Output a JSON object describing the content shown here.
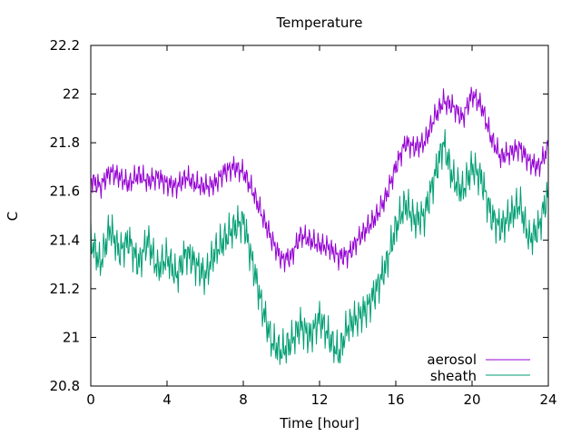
{
  "chart_data": {
    "type": "line",
    "title": "Temperature",
    "xlabel": "Time [hour]",
    "ylabel": "C",
    "xlim": [
      0,
      24
    ],
    "ylim": [
      20.8,
      22.2
    ],
    "xticks": [
      0,
      4,
      8,
      12,
      16,
      20,
      24
    ],
    "yticks": [
      20.8,
      21,
      21.2,
      21.4,
      21.6,
      21.8,
      22,
      22.2
    ],
    "ytick_labels": [
      "20.8",
      "21",
      "21.2",
      "21.4",
      "21.6",
      "21.8",
      "22",
      "22.2"
    ],
    "grid": false,
    "legend_position": "bottom-right",
    "x": [
      0,
      0.5,
      1,
      1.5,
      2,
      2.5,
      3,
      3.5,
      4,
      4.5,
      5,
      5.5,
      6,
      6.5,
      7,
      7.5,
      8,
      8.5,
      9,
      9.5,
      10,
      10.5,
      11,
      11.5,
      12,
      12.5,
      13,
      13.5,
      14,
      14.5,
      15,
      15.5,
      16,
      16.5,
      17,
      17.5,
      18,
      18.5,
      19,
      19.5,
      20,
      20.5,
      21,
      21.5,
      22,
      22.5,
      23,
      23.5,
      24
    ],
    "series": [
      {
        "name": "aerosol",
        "color": "#9400d3",
        "values": [
          21.65,
          21.62,
          21.68,
          21.66,
          21.63,
          21.67,
          21.64,
          21.66,
          21.63,
          21.62,
          21.66,
          21.63,
          21.62,
          21.63,
          21.68,
          21.7,
          21.68,
          21.6,
          21.5,
          21.4,
          21.32,
          21.33,
          21.42,
          21.4,
          21.38,
          21.37,
          21.33,
          21.34,
          21.4,
          21.45,
          21.5,
          21.58,
          21.7,
          21.8,
          21.78,
          21.8,
          21.9,
          21.97,
          21.95,
          21.9,
          22.0,
          21.95,
          21.82,
          21.74,
          21.76,
          21.78,
          21.72,
          21.7,
          21.78
        ]
      },
      {
        "name": "sheath",
        "color": "#009e73",
        "values": [
          21.4,
          21.3,
          21.45,
          21.35,
          21.4,
          21.3,
          21.4,
          21.28,
          21.33,
          21.25,
          21.35,
          21.3,
          21.25,
          21.35,
          21.4,
          21.45,
          21.48,
          21.3,
          21.12,
          20.98,
          20.94,
          20.98,
          21.05,
          21.0,
          21.08,
          21.0,
          20.93,
          21.05,
          21.08,
          21.12,
          21.2,
          21.3,
          21.45,
          21.55,
          21.48,
          21.5,
          21.65,
          21.8,
          21.65,
          21.6,
          21.7,
          21.65,
          21.5,
          21.45,
          21.5,
          21.55,
          21.4,
          21.45,
          21.6
        ]
      }
    ]
  }
}
